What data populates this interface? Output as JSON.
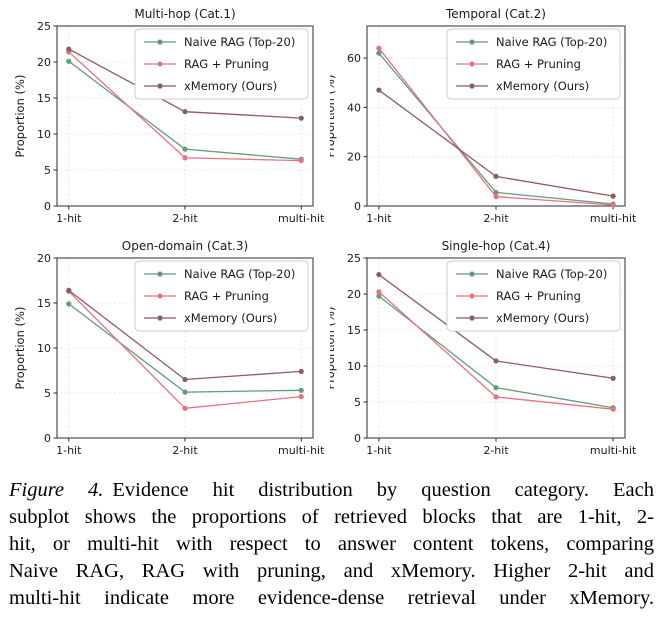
{
  "figure": {
    "caption": {
      "label": "Figure 4.",
      "line1_rest": "Evidence hit distribution by question category.  Each",
      "lines": [
        "subplot shows the proportions of retrieved blocks that are 1-hit, 2-",
        "hit, or multi-hit with respect to answer content tokens, comparing",
        "Naive RAG, RAG with pruning, and xMemory. Higher 2-hit and",
        "multi-hit indicate more evidence-dense retrieval under xMemory."
      ]
    }
  },
  "colors": {
    "naive": "#639b7d",
    "pruning": "#e5737e",
    "xmemory": "#8c5c63",
    "grid": "#d9d9d9",
    "axis": "#2b2b2b",
    "legend_border": "#cccccc",
    "text": "#1a1a1a"
  },
  "legend_labels": [
    "Naive RAG (Top-20)",
    "RAG + Pruning",
    "xMemory (Ours)"
  ],
  "chart_data": [
    {
      "type": "line",
      "title": "Multi-hop (Cat.1)",
      "ylabel": "Proportion (%)",
      "xlabel": "",
      "categories": [
        "1-hit",
        "2-hit",
        "multi-hit"
      ],
      "ylim": [
        0,
        25
      ],
      "yticks": [
        0,
        5,
        10,
        15,
        20,
        25
      ],
      "grid": true,
      "legend_position": "upper right",
      "series": [
        {
          "name": "Naive RAG (Top-20)",
          "color_key": "naive",
          "values": [
            20.1,
            7.9,
            6.5
          ]
        },
        {
          "name": "RAG + Pruning",
          "color_key": "pruning",
          "values": [
            21.4,
            6.7,
            6.3
          ]
        },
        {
          "name": "xMemory (Ours)",
          "color_key": "xmemory",
          "values": [
            21.8,
            13.1,
            12.2
          ]
        }
      ]
    },
    {
      "type": "line",
      "title": "Temporal (Cat.2)",
      "ylabel": "Proportion (%)",
      "xlabel": "",
      "categories": [
        "1-hit",
        "2-hit",
        "multi-hit"
      ],
      "ylim": [
        0,
        73
      ],
      "yticks": [
        0,
        20,
        40,
        60
      ],
      "grid": true,
      "legend_position": "upper right",
      "series": [
        {
          "name": "Naive RAG (Top-20)",
          "color_key": "naive",
          "values": [
            62.0,
            5.5,
            0.8
          ]
        },
        {
          "name": "RAG + Pruning",
          "color_key": "pruning",
          "values": [
            64.0,
            3.8,
            0.4
          ]
        },
        {
          "name": "xMemory (Ours)",
          "color_key": "xmemory",
          "values": [
            47.0,
            12.0,
            4.0
          ]
        }
      ]
    },
    {
      "type": "line",
      "title": "Open-domain (Cat.3)",
      "ylabel": "Proportion (%)",
      "xlabel": "",
      "categories": [
        "1-hit",
        "2-hit",
        "multi-hit"
      ],
      "ylim": [
        0,
        20
      ],
      "yticks": [
        0,
        5,
        10,
        15,
        20
      ],
      "grid": true,
      "legend_position": "upper right",
      "series": [
        {
          "name": "Naive RAG (Top-20)",
          "color_key": "naive",
          "values": [
            14.9,
            5.1,
            5.3
          ]
        },
        {
          "name": "RAG + Pruning",
          "color_key": "pruning",
          "values": [
            16.3,
            3.3,
            4.6
          ]
        },
        {
          "name": "xMemory (Ours)",
          "color_key": "xmemory",
          "values": [
            16.4,
            6.5,
            7.4
          ]
        }
      ]
    },
    {
      "type": "line",
      "title": "Single-hop (Cat.4)",
      "ylabel": "Proportion (%)",
      "xlabel": "",
      "categories": [
        "1-hit",
        "2-hit",
        "multi-hit"
      ],
      "ylim": [
        0,
        25
      ],
      "yticks": [
        0,
        5,
        10,
        15,
        20,
        25
      ],
      "grid": true,
      "legend_position": "upper right",
      "series": [
        {
          "name": "Naive RAG (Top-20)",
          "color_key": "naive",
          "values": [
            19.7,
            7.0,
            4.2
          ]
        },
        {
          "name": "RAG + Pruning",
          "color_key": "pruning",
          "values": [
            20.3,
            5.7,
            4.0
          ]
        },
        {
          "name": "xMemory (Ours)",
          "color_key": "xmemory",
          "values": [
            22.7,
            10.7,
            8.3
          ]
        }
      ]
    }
  ]
}
